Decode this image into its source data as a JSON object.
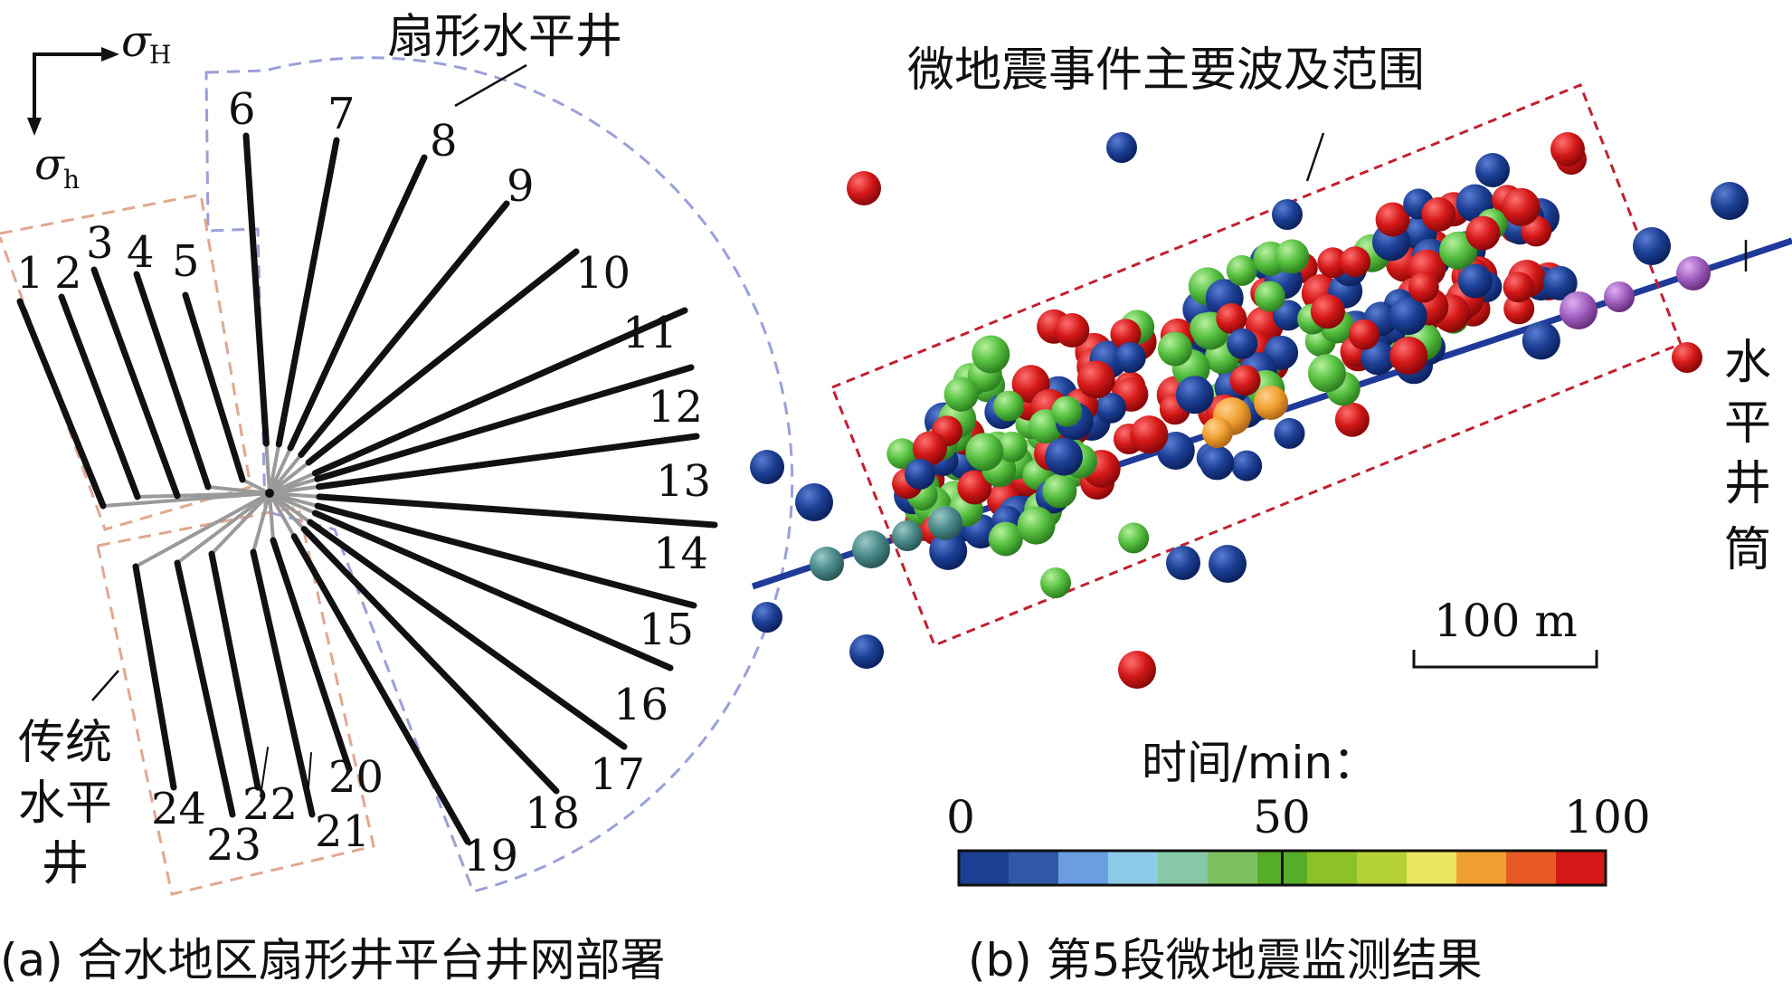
{
  "panel_a": {
    "stress_max": "σ",
    "stress_max_sub": "H",
    "stress_min": "σ",
    "stress_min_sub": "h",
    "fan_group_label": "扇形水平井",
    "conventional_group_label_lines": [
      "传统",
      "水平",
      "井"
    ],
    "well_numbers": [
      "1",
      "2",
      "3",
      "4",
      "5",
      "6",
      "7",
      "8",
      "9",
      "10",
      "11",
      "12",
      "13",
      "14",
      "15",
      "16",
      "17",
      "18",
      "19",
      "20",
      "21",
      "22",
      "23",
      "24"
    ],
    "caption": "(a) 合水地区扇形井平台井网部署"
  },
  "panel_b": {
    "range_label": "微地震事件主要波及范围",
    "wellbore_label_chars": [
      "水",
      "平",
      "井",
      "筒"
    ],
    "scale_bar_label": "100 m",
    "colorbar_title": "时间/min：",
    "colorbar_ticks": [
      "0",
      "50",
      "100"
    ],
    "colorbar_colors": [
      "#1c3f94",
      "#3158a8",
      "#6a9ee0",
      "#8ccbe8",
      "#86c8a8",
      "#7cc060",
      "#56ad28",
      "#8cc228",
      "#b4d234",
      "#eae460",
      "#f0a030",
      "#e85a24",
      "#d41818"
    ],
    "caption": "(b) 第5段微地震监测结果"
  },
  "colors": {
    "fan_box": "#9aa0d8",
    "conventional_box": "#e0a890",
    "range_box": "#c02030",
    "wellbore": "#203a9a",
    "event_blue": "#1c3f94",
    "event_red": "#d41818",
    "event_green": "#56c040",
    "event_teal": "#4a8a8a",
    "event_orange": "#f0a030",
    "event_purple": "#a060c0"
  }
}
